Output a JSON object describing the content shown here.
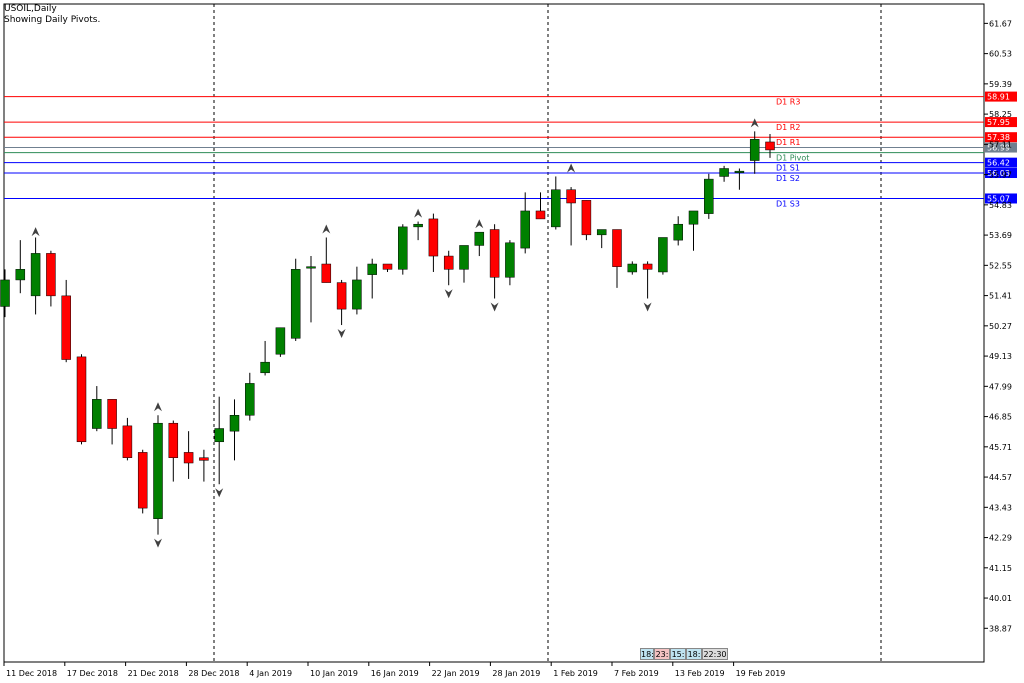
{
  "header": {
    "symbol": "USOIL,Daily",
    "subtitle": "Showing Daily Pivots."
  },
  "clock": {
    "segments": [
      "18:",
      "23:",
      "15:",
      "18:",
      "22:30"
    ],
    "colors": [
      "#bfe3f0",
      "#f4c2c2",
      "#bfe3f0",
      "#bfe3f0",
      "#dcdcdc"
    ]
  },
  "chart_data": {
    "type": "candlestick",
    "ylim": [
      37.6,
      62.4
    ],
    "y_ticks": [
      "61.67",
      "60.53",
      "59.39",
      "58.25",
      "57.11",
      "55.97",
      "54.83",
      "53.69",
      "52.55",
      "51.41",
      "50.27",
      "49.13",
      "47.99",
      "46.85",
      "45.71",
      "44.57",
      "43.43",
      "42.29",
      "41.15",
      "40.01",
      "38.87"
    ],
    "x_ticks": [
      "11 Dec 2018",
      "17 Dec 2018",
      "21 Dec 2018",
      "28 Dec 2018",
      "4 Jan 2019",
      "10 Jan 2019",
      "16 Jan 2019",
      "22 Jan 2019",
      "28 Jan 2019",
      "1 Feb 2019",
      "7 Feb 2019",
      "13 Feb 2019",
      "19 Feb 2019"
    ],
    "candles": [
      {
        "o": 51.0,
        "h": 52.4,
        "l": 50.6,
        "c": 52.0
      },
      {
        "o": 52.0,
        "h": 53.5,
        "l": 51.5,
        "c": 52.4
      },
      {
        "o": 51.4,
        "h": 53.6,
        "l": 50.7,
        "c": 53.0
      },
      {
        "o": 53.0,
        "h": 53.1,
        "l": 51.0,
        "c": 51.4
      },
      {
        "o": 51.4,
        "h": 52.0,
        "l": 48.9,
        "c": 49.0
      },
      {
        "o": 49.1,
        "h": 49.2,
        "l": 45.8,
        "c": 45.9
      },
      {
        "o": 46.4,
        "h": 48.0,
        "l": 46.3,
        "c": 47.5
      },
      {
        "o": 47.5,
        "h": 47.5,
        "l": 45.8,
        "c": 46.4
      },
      {
        "o": 46.5,
        "h": 46.8,
        "l": 45.2,
        "c": 45.3
      },
      {
        "o": 45.5,
        "h": 45.6,
        "l": 43.2,
        "c": 43.4
      },
      {
        "o": 43.0,
        "h": 46.9,
        "l": 42.4,
        "c": 46.6
      },
      {
        "o": 46.6,
        "h": 46.7,
        "l": 44.4,
        "c": 45.3
      },
      {
        "o": 45.5,
        "h": 46.3,
        "l": 44.5,
        "c": 45.1
      },
      {
        "o": 45.3,
        "h": 45.6,
        "l": 44.4,
        "c": 45.2
      },
      {
        "o": 45.9,
        "h": 47.6,
        "l": 44.3,
        "c": 46.4
      },
      {
        "o": 46.3,
        "h": 47.5,
        "l": 45.2,
        "c": 46.9
      },
      {
        "o": 46.9,
        "h": 48.5,
        "l": 46.7,
        "c": 48.1
      },
      {
        "o": 48.5,
        "h": 49.7,
        "l": 48.4,
        "c": 48.9
      },
      {
        "o": 49.2,
        "h": 50.2,
        "l": 49.1,
        "c": 50.2
      },
      {
        "o": 49.8,
        "h": 52.8,
        "l": 49.7,
        "c": 52.4
      },
      {
        "o": 52.5,
        "h": 52.9,
        "l": 50.4,
        "c": 52.5
      },
      {
        "o": 52.6,
        "h": 53.6,
        "l": 51.9,
        "c": 51.9
      },
      {
        "o": 51.9,
        "h": 52.0,
        "l": 50.3,
        "c": 50.9
      },
      {
        "o": 50.9,
        "h": 52.5,
        "l": 50.7,
        "c": 52.0
      },
      {
        "o": 52.2,
        "h": 52.8,
        "l": 51.3,
        "c": 52.6
      },
      {
        "o": 52.6,
        "h": 52.6,
        "l": 52.3,
        "c": 52.4
      },
      {
        "o": 52.4,
        "h": 54.1,
        "l": 52.2,
        "c": 54.0
      },
      {
        "o": 54.0,
        "h": 54.2,
        "l": 53.5,
        "c": 54.1
      },
      {
        "o": 54.3,
        "h": 54.5,
        "l": 52.3,
        "c": 52.9
      },
      {
        "o": 52.9,
        "h": 53.1,
        "l": 51.8,
        "c": 52.4
      },
      {
        "o": 52.4,
        "h": 53.3,
        "l": 51.9,
        "c": 53.3
      },
      {
        "o": 53.3,
        "h": 53.8,
        "l": 52.9,
        "c": 53.8
      },
      {
        "o": 53.9,
        "h": 54.1,
        "l": 51.3,
        "c": 52.1
      },
      {
        "o": 52.1,
        "h": 53.5,
        "l": 51.8,
        "c": 53.4
      },
      {
        "o": 53.2,
        "h": 55.3,
        "l": 53.0,
        "c": 54.6
      },
      {
        "o": 54.6,
        "h": 55.3,
        "l": 54.3,
        "c": 54.3
      },
      {
        "o": 54.0,
        "h": 55.9,
        "l": 53.9,
        "c": 55.4
      },
      {
        "o": 55.4,
        "h": 55.5,
        "l": 53.3,
        "c": 54.9
      },
      {
        "o": 55.0,
        "h": 55.0,
        "l": 53.5,
        "c": 53.7
      },
      {
        "o": 53.7,
        "h": 53.8,
        "l": 53.2,
        "c": 53.9
      },
      {
        "o": 53.9,
        "h": 53.9,
        "l": 51.7,
        "c": 52.5
      },
      {
        "o": 52.3,
        "h": 52.7,
        "l": 52.2,
        "c": 52.6
      },
      {
        "o": 52.6,
        "h": 52.7,
        "l": 51.3,
        "c": 52.4
      },
      {
        "o": 52.3,
        "h": 53.6,
        "l": 52.2,
        "c": 53.6
      },
      {
        "o": 53.5,
        "h": 54.4,
        "l": 53.3,
        "c": 54.1
      },
      {
        "o": 54.1,
        "h": 54.6,
        "l": 53.1,
        "c": 54.6
      },
      {
        "o": 54.5,
        "h": 56.0,
        "l": 54.3,
        "c": 55.8
      },
      {
        "o": 55.9,
        "h": 56.3,
        "l": 55.7,
        "c": 56.2
      },
      {
        "o": 56.1,
        "h": 56.2,
        "l": 55.4,
        "c": 56.1
      },
      {
        "o": 56.5,
        "h": 57.6,
        "l": 56.0,
        "c": 57.3
      },
      {
        "o": 57.2,
        "h": 57.5,
        "l": 56.6,
        "c": 56.9
      }
    ],
    "pivot_lines": [
      {
        "label": "D1 R3",
        "value": 58.91,
        "value_text": "58.91",
        "color": "#ff0000"
      },
      {
        "label": "D1 R2",
        "value": 57.95,
        "value_text": "57.95",
        "color": "#ff0000"
      },
      {
        "label": "D1 R1",
        "value": 57.38,
        "value_text": "57.38",
        "color": "#ff0000"
      },
      {
        "label": "D1 Pivot",
        "value": 56.8,
        "value_text": "",
        "color": "#2e8b57"
      },
      {
        "label": "D1 S1",
        "value": 56.42,
        "value_text": "56.42",
        "color": "#0000ff"
      },
      {
        "label": "D1 S2",
        "value": 56.03,
        "value_text": "56.03",
        "color": "#0000ff"
      },
      {
        "label": "D1 S3",
        "value": 55.07,
        "value_text": "55.07",
        "color": "#0000ff"
      }
    ],
    "current_price": {
      "value": 56.99,
      "value_text": "56.99",
      "color": "#708090"
    },
    "fractals_up": [
      {
        "i": 2,
        "v": 53.8
      },
      {
        "i": 10,
        "v": 47.2
      },
      {
        "i": 21,
        "v": 53.9
      },
      {
        "i": 27,
        "v": 54.5
      },
      {
        "i": 31,
        "v": 54.1
      },
      {
        "i": 37,
        "v": 56.2
      },
      {
        "i": 49,
        "v": 57.9
      }
    ],
    "fractals_down": [
      {
        "i": 10,
        "v": 42.1
      },
      {
        "i": 14,
        "v": 44.0
      },
      {
        "i": 22,
        "v": 50.0
      },
      {
        "i": 29,
        "v": 51.5
      },
      {
        "i": 32,
        "v": 51.0
      },
      {
        "i": 42,
        "v": 51.0
      }
    ],
    "separators_x": [
      214,
      548,
      881
    ],
    "colors": {
      "bull": "#008000",
      "bear": "#ff0000",
      "wick": "#000000",
      "frac_up": "#404040"
    }
  }
}
